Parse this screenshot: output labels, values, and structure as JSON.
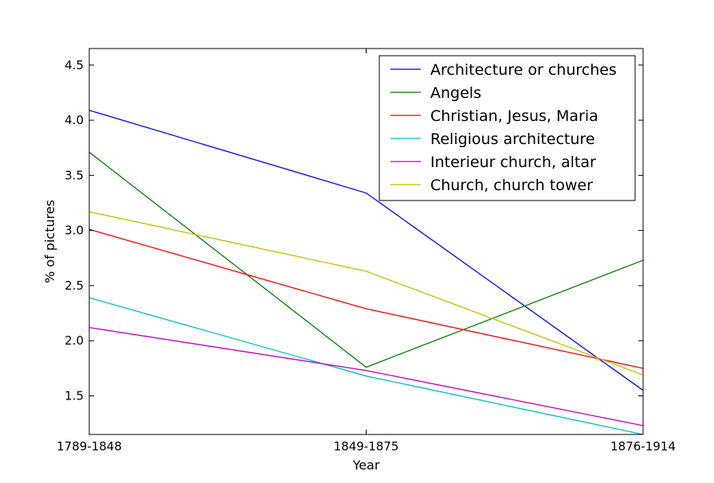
{
  "chart_data": {
    "type": "line",
    "title": "",
    "xlabel": "Year",
    "ylabel": "% of pictures",
    "categories": [
      "1789-1848",
      "1849-1875",
      "1876-1914"
    ],
    "ylim": [
      1.15,
      4.65
    ],
    "yticks": [
      "1.5",
      "2.0",
      "2.5",
      "3.0",
      "3.5",
      "4.0",
      "4.5"
    ],
    "grid": false,
    "legend_position": "top-right",
    "series": [
      {
        "name": "Architecture or churches",
        "color": "#0000ff",
        "values": [
          4.09,
          3.34,
          1.55
        ]
      },
      {
        "name": "Angels",
        "color": "#008000",
        "values": [
          3.71,
          1.76,
          2.73
        ]
      },
      {
        "name": "Christian, Jesus, Maria",
        "color": "#ff0000",
        "values": [
          3.01,
          2.29,
          1.75
        ]
      },
      {
        "name": "Religious architecture",
        "color": "#00bfbf",
        "values": [
          2.39,
          1.68,
          1.15
        ]
      },
      {
        "name": "Interieur church, altar",
        "color": "#bf00bf",
        "values": [
          2.12,
          1.73,
          1.23
        ]
      },
      {
        "name": "Church, church tower",
        "color": "#bfbf00",
        "values": [
          3.17,
          2.63,
          1.69
        ]
      }
    ]
  }
}
